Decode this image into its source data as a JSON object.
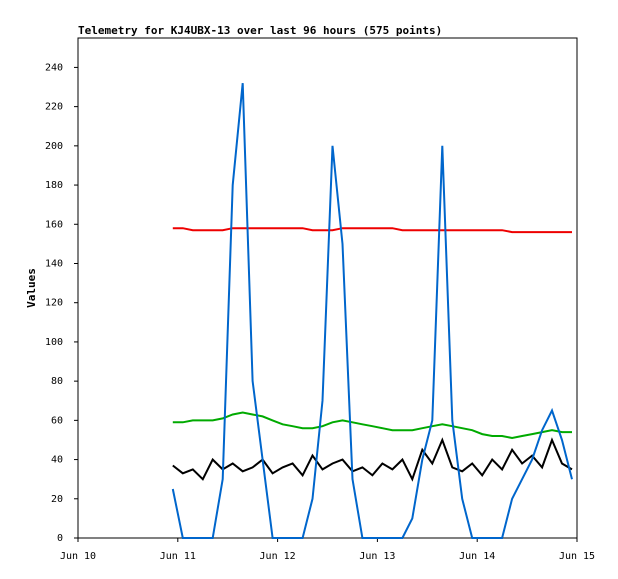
{
  "chart_data": {
    "type": "line",
    "title": "Telemetry for KJ4UBX-13 over last 96 hours (575 points)",
    "y_label": "Values",
    "x": [
      10.95,
      11.05,
      11.15,
      11.25,
      11.35,
      11.45,
      11.55,
      11.65,
      11.75,
      11.85,
      11.95,
      12.05,
      12.15,
      12.25,
      12.35,
      12.45,
      12.55,
      12.65,
      12.75,
      12.85,
      12.95,
      13.05,
      13.15,
      13.25,
      13.35,
      13.45,
      13.55,
      13.65,
      13.75,
      13.85,
      13.95,
      14.05,
      14.15,
      14.25,
      14.35,
      14.45,
      14.55,
      14.65,
      14.75,
      14.85,
      14.95
    ],
    "series": [
      {
        "color": "#ee0000",
        "values": [
          158,
          158,
          157,
          157,
          157,
          157,
          158,
          158,
          158,
          158,
          158,
          158,
          158,
          158,
          157,
          157,
          157,
          158,
          158,
          158,
          158,
          158,
          158,
          157,
          157,
          157,
          157,
          157,
          157,
          157,
          157,
          157,
          157,
          157,
          156,
          156,
          156,
          156,
          156,
          156,
          156
        ]
      },
      {
        "color": "#00aa00",
        "values": [
          59,
          59,
          60,
          60,
          60,
          61,
          63,
          64,
          63,
          62,
          60,
          58,
          57,
          56,
          56,
          57,
          59,
          60,
          59,
          58,
          57,
          56,
          55,
          55,
          55,
          56,
          57,
          58,
          57,
          56,
          55,
          53,
          52,
          52,
          51,
          52,
          53,
          54,
          55,
          54,
          54
        ]
      },
      {
        "color": "#000000",
        "values": [
          37,
          33,
          35,
          30,
          40,
          35,
          38,
          34,
          36,
          40,
          33,
          36,
          38,
          32,
          42,
          35,
          38,
          40,
          34,
          36,
          32,
          38,
          35,
          40,
          30,
          45,
          38,
          50,
          36,
          34,
          38,
          32,
          40,
          35,
          45,
          38,
          42,
          36,
          50,
          38,
          35
        ]
      },
      {
        "color": "#0066cc",
        "values": [
          25,
          0,
          0,
          0,
          0,
          30,
          180,
          232,
          80,
          40,
          0,
          0,
          0,
          0,
          20,
          70,
          200,
          150,
          30,
          0,
          0,
          0,
          0,
          0,
          10,
          40,
          60,
          200,
          60,
          20,
          0,
          0,
          0,
          0,
          20,
          30,
          40,
          55,
          65,
          50,
          30
        ]
      }
    ],
    "xlim": [
      10,
      15
    ],
    "xticks": [
      {
        "value": 10,
        "label": "Jun 10"
      },
      {
        "value": 11,
        "label": "Jun 11"
      },
      {
        "value": 12,
        "label": "Jun 12"
      },
      {
        "value": 13,
        "label": "Jun 13"
      },
      {
        "value": 14,
        "label": "Jun 14"
      },
      {
        "value": 15,
        "label": "Jun 15"
      }
    ],
    "ylim": [
      0,
      255
    ],
    "yticks": [
      0,
      20,
      40,
      60,
      80,
      100,
      120,
      140,
      160,
      180,
      200,
      220,
      240
    ]
  }
}
